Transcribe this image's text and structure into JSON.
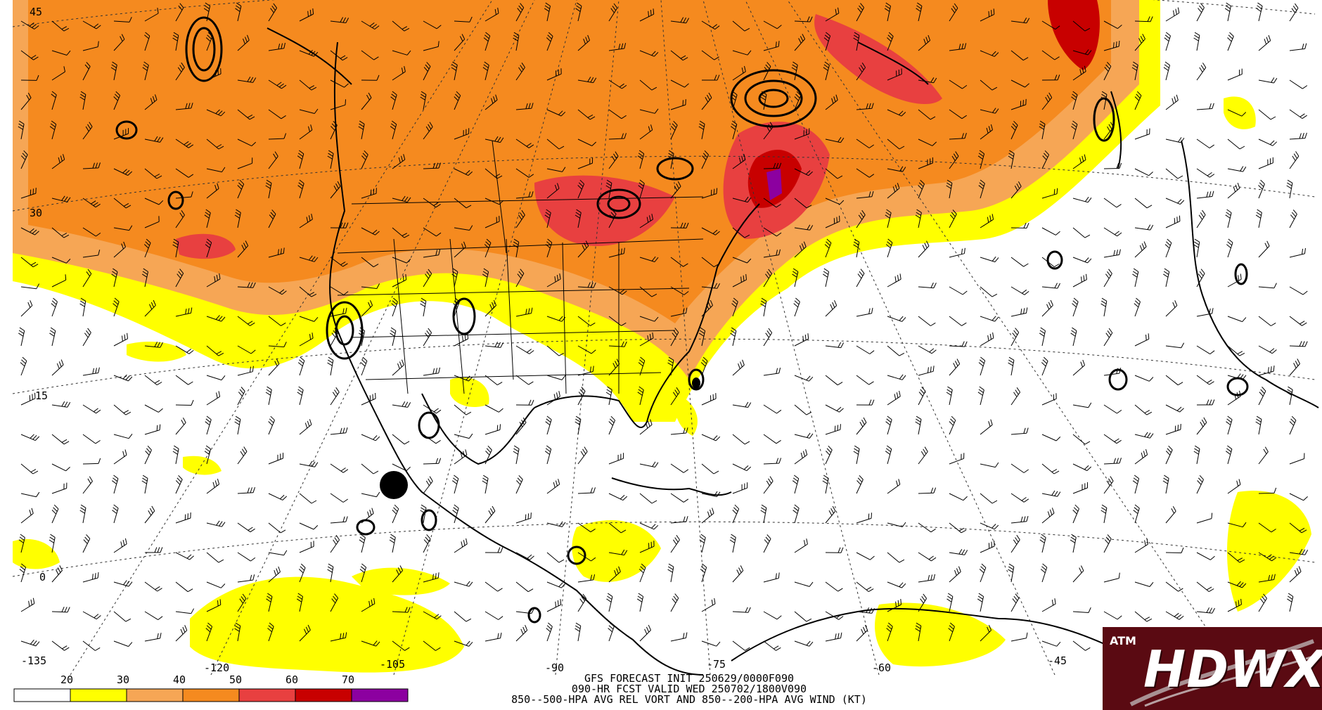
{
  "map": {
    "lat_labels": [
      "45",
      "30",
      "15",
      "0"
    ],
    "lon_labels": [
      "-135",
      "-120",
      "-105",
      "-90",
      "-75",
      "-60",
      "-45"
    ]
  },
  "legend": {
    "ticks": [
      "20",
      "30",
      "40",
      "50",
      "60",
      "70"
    ],
    "colors": [
      "#ffffff",
      "#ffff00",
      "#f6a655",
      "#f58a1f",
      "#e84040",
      "#c80000",
      "#8c00a0"
    ]
  },
  "caption": {
    "line1": "GFS FORECAST INIT 250629/0000F090",
    "line2": "090-HR FCST VALID WED 250702/1800V090",
    "line3": "850--500-HPA AVG REL VORT AND 850--200-HPA AVG WIND (KT)"
  },
  "logo": {
    "text": "HDWX",
    "mark": "ATM"
  }
}
